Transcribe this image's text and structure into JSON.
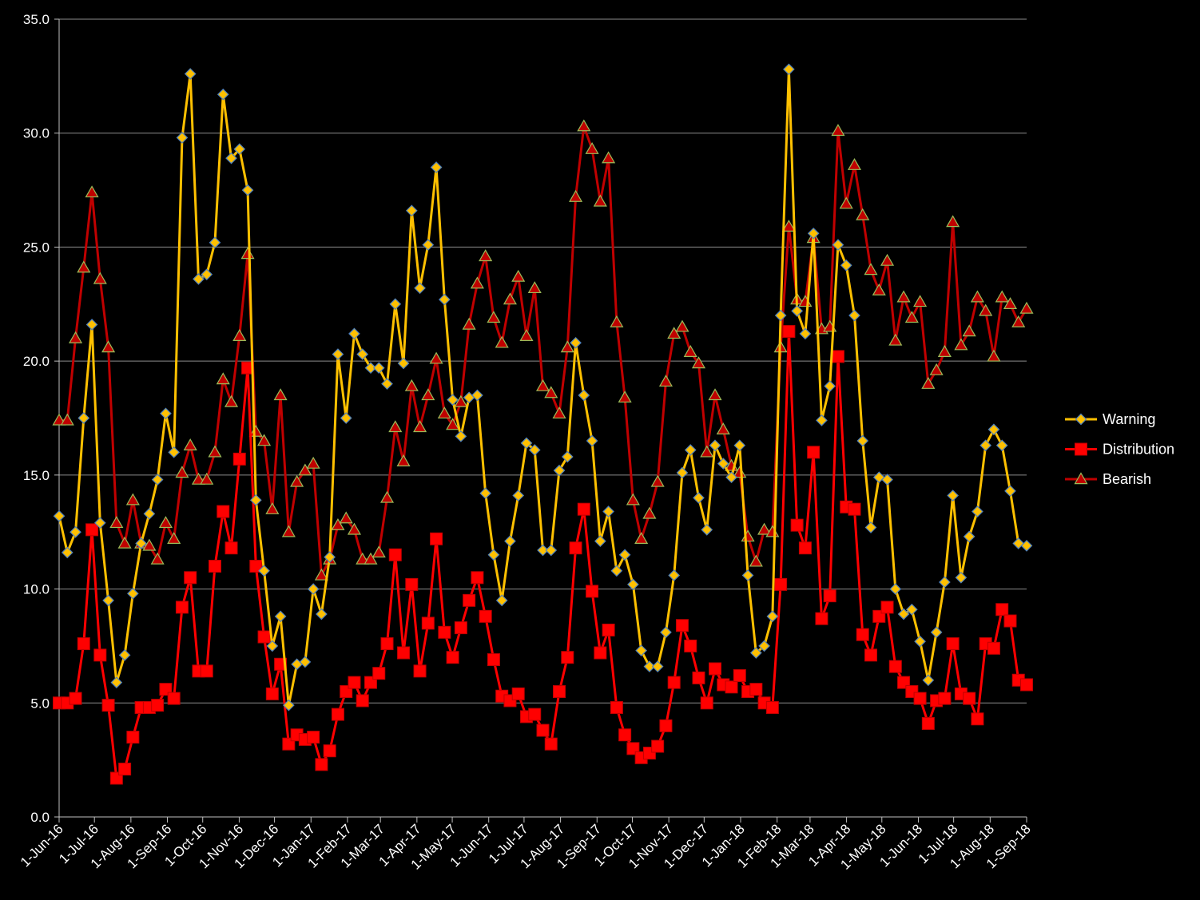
{
  "chart_data": {
    "type": "line",
    "title": "",
    "xlabel": "",
    "ylabel": "",
    "ylim": [
      0,
      35
    ],
    "yticks": [
      "0.0",
      "5.0",
      "10.0",
      "15.0",
      "20.0",
      "25.0",
      "30.0",
      "35.0"
    ],
    "x_range": [
      "2016-06-01",
      "2016-09-01"
    ],
    "x_start": "2016-06-01",
    "x_end": "2018-09-01",
    "xtick_labels": [
      "1-Jun-16",
      "1-Jul-16",
      "1-Aug-16",
      "1-Sep-16",
      "1-Oct-16",
      "1-Nov-16",
      "1-Dec-16",
      "1-Jan-17",
      "1-Feb-17",
      "1-Mar-17",
      "1-Apr-17",
      "1-May-17",
      "1-Jun-17",
      "1-Jul-17",
      "1-Aug-17",
      "1-Sep-17",
      "1-Oct-17",
      "1-Nov-17",
      "1-Dec-17",
      "1-Jan-18",
      "1-Feb-18",
      "1-Mar-18",
      "1-Apr-18",
      "1-May-18",
      "1-Jun-18",
      "1-Jul-18",
      "1-Aug-18",
      "1-Sep-18"
    ],
    "xtick_dates": [
      "2016-06-01",
      "2016-07-01",
      "2016-08-01",
      "2016-09-01",
      "2016-10-01",
      "2016-11-01",
      "2016-12-01",
      "2017-01-01",
      "2017-02-01",
      "2017-03-01",
      "2017-04-01",
      "2017-05-01",
      "2017-06-01",
      "2017-07-01",
      "2017-08-01",
      "2017-09-01",
      "2017-10-01",
      "2017-11-01",
      "2017-12-01",
      "2018-01-01",
      "2018-02-01",
      "2018-03-01",
      "2018-04-01",
      "2018-05-01",
      "2018-06-01",
      "2018-07-01",
      "2018-08-01",
      "2018-09-01"
    ],
    "grid": true,
    "legend_position": "right",
    "series": [
      {
        "name": "Warning",
        "color": "#FFC000",
        "marker": "diamond",
        "values": [
          13.2,
          11.6,
          12.5,
          17.5,
          21.6,
          12.9,
          9.5,
          5.9,
          7.1,
          9.8,
          12.0,
          13.3,
          14.8,
          17.7,
          16.0,
          29.8,
          32.6,
          23.6,
          23.8,
          25.2,
          31.7,
          28.9,
          29.3,
          27.5,
          13.9,
          10.8,
          7.5,
          8.8,
          4.9,
          6.7,
          6.8,
          10.0,
          8.9,
          11.4,
          20.3,
          17.5,
          21.2,
          20.3,
          19.7,
          19.7,
          19.0,
          22.5,
          19.9,
          26.6,
          23.2,
          25.1,
          28.5,
          22.7,
          18.3,
          16.7,
          18.4,
          18.5,
          14.2,
          11.5,
          9.5,
          12.1,
          14.1,
          16.4,
          16.1,
          11.7,
          11.7,
          15.2,
          15.8,
          20.8,
          18.5,
          16.5,
          12.1,
          13.4,
          10.8,
          11.5,
          10.2,
          7.3,
          6.6,
          6.6,
          8.1,
          10.6,
          15.1,
          16.1,
          14.0,
          12.6,
          16.3,
          15.5,
          14.9,
          16.3,
          10.6,
          7.2,
          7.5,
          8.8,
          22.0,
          32.8,
          22.2,
          21.2,
          25.6,
          17.4,
          18.9,
          25.1,
          24.2,
          22.0,
          16.5,
          12.7,
          14.9,
          14.8,
          10.0,
          8.9,
          9.1,
          7.7,
          6.0,
          8.1,
          10.3,
          14.1,
          10.5,
          12.3,
          13.4,
          16.3,
          17.0,
          16.3,
          14.3,
          12.0,
          11.9
        ]
      },
      {
        "name": "Distribution",
        "color": "#FF0000",
        "marker": "square",
        "values": [
          5.0,
          5.0,
          5.2,
          7.6,
          12.6,
          7.1,
          4.9,
          1.7,
          2.1,
          3.5,
          4.8,
          4.8,
          4.9,
          5.6,
          5.2,
          9.2,
          10.5,
          6.4,
          6.4,
          11.0,
          13.4,
          11.8,
          15.7,
          19.7,
          11.0,
          7.9,
          5.4,
          6.7,
          3.2,
          3.6,
          3.4,
          3.5,
          2.3,
          2.9,
          4.5,
          5.5,
          5.9,
          5.1,
          5.9,
          6.3,
          7.6,
          11.5,
          7.2,
          10.2,
          6.4,
          8.5,
          12.2,
          8.1,
          7.0,
          8.3,
          9.5,
          10.5,
          8.8,
          6.9,
          5.3,
          5.1,
          5.4,
          4.4,
          4.5,
          3.8,
          3.2,
          5.5,
          7.0,
          11.8,
          13.5,
          9.9,
          7.2,
          8.2,
          4.8,
          3.6,
          3.0,
          2.6,
          2.8,
          3.1,
          4.0,
          5.9,
          8.4,
          7.5,
          6.1,
          5.0,
          6.5,
          5.8,
          5.7,
          6.2,
          5.5,
          5.6,
          5.0,
          4.8,
          10.2,
          21.3,
          12.8,
          11.8,
          16.0,
          8.7,
          9.7,
          20.2,
          13.6,
          13.5,
          8.0,
          7.1,
          8.8,
          9.2,
          6.6,
          5.9,
          5.5,
          5.2,
          4.1,
          5.1,
          5.2,
          7.6,
          5.4,
          5.2,
          4.3,
          7.6,
          7.4,
          9.1,
          8.6,
          6.0,
          5.8
        ]
      },
      {
        "name": "Bearish",
        "color": "#C00000",
        "marker": "triangle",
        "values": [
          17.4,
          17.4,
          21.0,
          24.1,
          27.4,
          23.6,
          20.6,
          12.9,
          12.0,
          13.9,
          12.0,
          11.9,
          11.3,
          12.9,
          12.2,
          15.1,
          16.3,
          14.8,
          14.8,
          16.0,
          19.2,
          18.2,
          21.1,
          24.7,
          16.9,
          16.5,
          13.5,
          18.5,
          12.5,
          14.7,
          15.2,
          15.5,
          10.6,
          11.3,
          12.8,
          13.1,
          12.6,
          11.3,
          11.3,
          11.6,
          14.0,
          17.1,
          15.6,
          18.9,
          17.1,
          18.5,
          20.1,
          17.7,
          17.2,
          18.2,
          21.6,
          23.4,
          24.6,
          21.9,
          20.8,
          22.7,
          23.7,
          21.1,
          23.2,
          18.9,
          18.6,
          17.7,
          20.6,
          27.2,
          30.3,
          29.3,
          27.0,
          28.9,
          21.7,
          18.4,
          13.9,
          12.2,
          13.3,
          14.7,
          19.1,
          21.2,
          21.5,
          20.4,
          19.9,
          16.0,
          18.5,
          17.0,
          15.4,
          15.1,
          12.3,
          11.2,
          12.6,
          12.5,
          20.6,
          25.9,
          22.7,
          22.6,
          25.4,
          21.4,
          21.5,
          30.1,
          26.9,
          28.6,
          26.4,
          24.0,
          23.1,
          24.4,
          20.9,
          22.8,
          21.9,
          22.6,
          19.0,
          19.6,
          20.4,
          26.1,
          20.7,
          21.3,
          22.8,
          22.2,
          20.2,
          22.8,
          22.5,
          21.7,
          22.3
        ]
      }
    ]
  }
}
